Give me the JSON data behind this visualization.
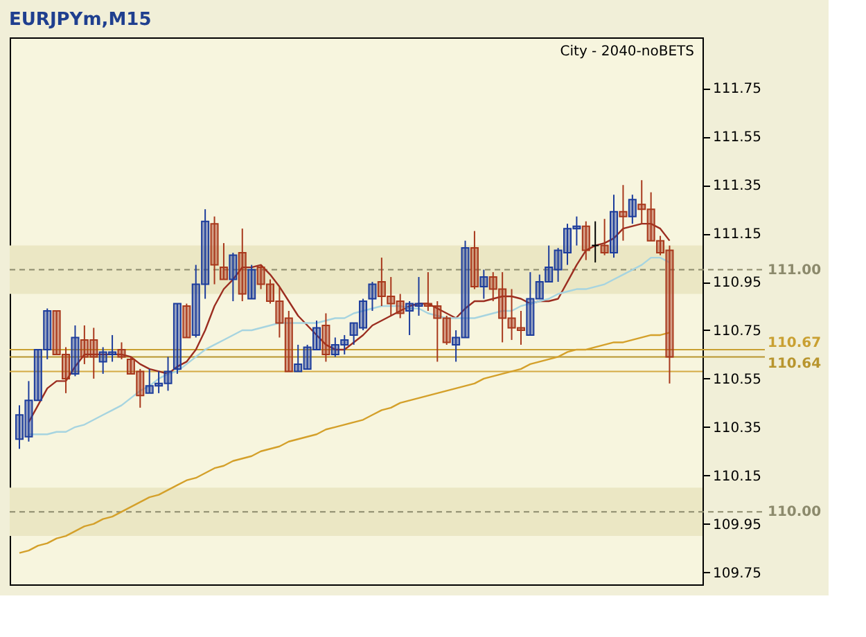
{
  "chart_data": {
    "type": "candlestick",
    "title": "EURJPYm,M15",
    "annotations": [
      "City - 2040-noBETS"
    ],
    "categories": [
      null,
      null,
      null,
      null,
      null,
      null,
      null,
      null,
      null,
      null,
      null,
      null,
      null,
      null,
      null,
      null,
      null,
      null,
      null,
      null,
      null,
      null,
      null,
      null,
      null,
      null,
      null,
      null,
      null,
      null,
      null,
      null,
      null,
      null,
      null,
      null,
      null,
      null,
      null,
      null,
      null,
      null,
      null,
      null,
      null,
      null,
      null,
      null,
      null,
      null,
      null,
      null,
      null,
      null,
      null,
      null,
      null,
      null,
      null,
      null,
      null,
      null,
      null,
      null,
      null,
      null,
      null,
      null,
      null,
      null,
      null
    ],
    "ohlc": [
      [
        110.3,
        110.44,
        110.26,
        110.4
      ],
      [
        110.31,
        110.54,
        110.29,
        110.46
      ],
      [
        110.46,
        110.67,
        110.46,
        110.67
      ],
      [
        110.67,
        110.84,
        110.63,
        110.83
      ],
      [
        110.83,
        110.83,
        110.65,
        110.65
      ],
      [
        110.65,
        110.68,
        110.49,
        110.55
      ],
      [
        110.57,
        110.77,
        110.56,
        110.72
      ],
      [
        110.71,
        110.77,
        110.61,
        110.64
      ],
      [
        110.71,
        110.76,
        110.55,
        110.64
      ],
      [
        110.62,
        110.68,
        110.57,
        110.66
      ],
      [
        110.65,
        110.73,
        110.62,
        110.66
      ],
      [
        110.67,
        110.7,
        110.63,
        110.64
      ],
      [
        110.63,
        110.64,
        110.57,
        110.57
      ],
      [
        110.58,
        110.59,
        110.43,
        110.48
      ],
      [
        110.49,
        110.59,
        110.49,
        110.52
      ],
      [
        110.52,
        110.58,
        110.49,
        110.53
      ],
      [
        110.53,
        110.64,
        110.5,
        110.58
      ],
      [
        110.59,
        110.86,
        110.57,
        110.86
      ],
      [
        110.85,
        110.86,
        110.72,
        110.72
      ],
      [
        110.73,
        111.02,
        110.72,
        110.94
      ],
      [
        110.94,
        111.25,
        110.88,
        111.2
      ],
      [
        111.19,
        111.22,
        110.94,
        111.02
      ],
      [
        111.01,
        111.11,
        110.96,
        110.96
      ],
      [
        110.96,
        111.07,
        110.87,
        111.06
      ],
      [
        111.07,
        111.17,
        110.87,
        110.9
      ],
      [
        110.88,
        111.02,
        110.88,
        111.0
      ],
      [
        111.01,
        111.02,
        110.92,
        110.94
      ],
      [
        110.94,
        110.96,
        110.86,
        110.87
      ],
      [
        110.87,
        110.93,
        110.72,
        110.78
      ],
      [
        110.8,
        110.83,
        110.58,
        110.58
      ],
      [
        110.58,
        110.69,
        110.58,
        110.61
      ],
      [
        110.59,
        110.69,
        110.59,
        110.68
      ],
      [
        110.67,
        110.79,
        110.67,
        110.76
      ],
      [
        110.77,
        110.82,
        110.62,
        110.65
      ],
      [
        110.65,
        110.72,
        110.64,
        110.69
      ],
      [
        110.69,
        110.73,
        110.65,
        110.71
      ],
      [
        110.73,
        110.78,
        110.69,
        110.78
      ],
      [
        110.76,
        110.88,
        110.75,
        110.87
      ],
      [
        110.88,
        110.95,
        110.83,
        110.94
      ],
      [
        110.95,
        111.05,
        110.85,
        110.89
      ],
      [
        110.89,
        110.97,
        110.81,
        110.86
      ],
      [
        110.87,
        110.9,
        110.8,
        110.82
      ],
      [
        110.83,
        110.87,
        110.73,
        110.86
      ],
      [
        110.85,
        110.97,
        110.81,
        110.86
      ],
      [
        110.86,
        110.99,
        110.83,
        110.85
      ],
      [
        110.85,
        110.87,
        110.62,
        110.8
      ],
      [
        110.8,
        110.81,
        110.69,
        110.7
      ],
      [
        110.69,
        110.75,
        110.62,
        110.72
      ],
      [
        110.72,
        111.12,
        110.72,
        111.09
      ],
      [
        111.09,
        111.16,
        110.92,
        110.93
      ],
      [
        110.93,
        111.0,
        110.88,
        110.97
      ],
      [
        110.97,
        110.99,
        110.87,
        110.92
      ],
      [
        110.92,
        110.99,
        110.7,
        110.8
      ],
      [
        110.8,
        110.92,
        110.71,
        110.76
      ],
      [
        110.76,
        110.83,
        110.69,
        110.75
      ],
      [
        110.73,
        110.99,
        110.73,
        110.88
      ],
      [
        110.88,
        110.98,
        110.88,
        110.95
      ],
      [
        110.95,
        111.1,
        110.95,
        111.01
      ],
      [
        111.0,
        111.09,
        110.95,
        111.08
      ],
      [
        111.07,
        111.19,
        111.02,
        111.17
      ],
      [
        111.17,
        111.22,
        111.1,
        111.18
      ],
      [
        111.18,
        111.2,
        111.04,
        111.08
      ],
      [
        111.1,
        111.2,
        111.03,
        111.1
      ],
      [
        111.1,
        111.21,
        111.06,
        111.07
      ],
      [
        111.07,
        111.31,
        111.05,
        111.24
      ],
      [
        111.24,
        111.35,
        111.12,
        111.22
      ],
      [
        111.22,
        111.31,
        111.19,
        111.29
      ],
      [
        111.27,
        111.37,
        111.19,
        111.25
      ],
      [
        111.25,
        111.32,
        111.12,
        111.12
      ],
      [
        111.12,
        111.14,
        111.06,
        111.07
      ],
      [
        111.08,
        111.1,
        110.53,
        110.64
      ]
    ],
    "colors": [
      "#1c3c9c",
      "#1c3c9c",
      "#1c3c9c",
      "#1c3c9c",
      "#a8381c",
      "#a8381c",
      "#1c3c9c",
      "#a8381c",
      "#a8381c",
      "#1c3c9c",
      "#1c3c9c",
      "#a8381c",
      "#a8381c",
      "#a8381c",
      "#1c3c9c",
      "#1c3c9c",
      "#1c3c9c",
      "#1c3c9c",
      "#a8381c",
      "#1c3c9c",
      "#1c3c9c",
      "#a8381c",
      "#a8381c",
      "#1c3c9c",
      "#a8381c",
      "#1c3c9c",
      "#a8381c",
      "#a8381c",
      "#a8381c",
      "#a8381c",
      "#1c3c9c",
      "#1c3c9c",
      "#1c3c9c",
      "#a8381c",
      "#1c3c9c",
      "#1c3c9c",
      "#1c3c9c",
      "#1c3c9c",
      "#1c3c9c",
      "#a8381c",
      "#a8381c",
      "#a8381c",
      "#1c3c9c",
      "#1c3c9c",
      "#a8381c",
      "#a8381c",
      "#a8381c",
      "#1c3c9c",
      "#1c3c9c",
      "#a8381c",
      "#1c3c9c",
      "#a8381c",
      "#a8381c",
      "#a8381c",
      "#a8381c",
      "#1c3c9c",
      "#1c3c9c",
      "#1c3c9c",
      "#1c3c9c",
      "#1c3c9c",
      "#1c3c9c",
      "#a8381c",
      "#000000",
      "#a8381c",
      "#1c3c9c",
      "#a8381c",
      "#1c3c9c",
      "#a8381c",
      "#a8381c",
      "#a8381c",
      "#a8381c"
    ],
    "series": [
      {
        "type": "line",
        "color": "#9b2d20",
        "values": [
          null,
          110.37,
          110.44,
          110.51,
          110.54,
          110.54,
          110.6,
          110.65,
          110.65,
          110.65,
          110.65,
          110.65,
          110.64,
          110.61,
          110.59,
          110.58,
          110.57,
          110.6,
          110.62,
          110.67,
          110.75,
          110.85,
          110.92,
          110.96,
          111.01,
          111.01,
          111.02,
          110.98,
          110.93,
          110.87,
          110.81,
          110.77,
          110.73,
          110.69,
          110.67,
          110.67,
          110.7,
          110.73,
          110.77,
          110.79,
          110.81,
          110.83,
          110.85,
          110.86,
          110.86,
          110.84,
          110.82,
          110.8,
          110.84,
          110.87,
          110.87,
          110.88,
          110.89,
          110.89,
          110.88,
          110.86,
          110.87,
          110.87,
          110.88,
          110.95,
          111.02,
          111.08,
          111.1,
          111.11,
          111.13,
          111.17,
          111.18,
          111.19,
          111.19,
          111.17,
          111.12
        ]
      },
      {
        "type": "line",
        "color": "#a6d4e0",
        "values": [
          null,
          110.32,
          110.32,
          110.32,
          110.33,
          110.33,
          110.35,
          110.36,
          110.38,
          110.4,
          110.42,
          110.44,
          110.47,
          110.5,
          110.52,
          110.55,
          110.57,
          110.58,
          110.61,
          110.64,
          110.67,
          110.69,
          110.71,
          110.73,
          110.75,
          110.75,
          110.76,
          110.77,
          110.78,
          110.78,
          110.78,
          110.78,
          110.78,
          110.79,
          110.8,
          110.8,
          110.82,
          110.83,
          110.84,
          110.85,
          110.85,
          110.85,
          110.84,
          110.84,
          110.82,
          110.81,
          110.8,
          110.8,
          110.8,
          110.8,
          110.81,
          110.82,
          110.83,
          110.83,
          110.85,
          110.86,
          110.87,
          110.88,
          110.9,
          110.91,
          110.92,
          110.92,
          110.93,
          110.94,
          110.96,
          110.98,
          111.0,
          111.02,
          111.05,
          111.05,
          111.03
        ]
      },
      {
        "type": "line",
        "color": "#d4a02a",
        "values": [
          109.83,
          109.84,
          109.86,
          109.87,
          109.89,
          109.9,
          109.92,
          109.94,
          109.95,
          109.97,
          109.98,
          110.0,
          110.02,
          110.04,
          110.06,
          110.07,
          110.09,
          110.11,
          110.13,
          110.14,
          110.16,
          110.18,
          110.19,
          110.21,
          110.22,
          110.23,
          110.25,
          110.26,
          110.27,
          110.29,
          110.3,
          110.31,
          110.32,
          110.34,
          110.35,
          110.36,
          110.37,
          110.38,
          110.4,
          110.42,
          110.43,
          110.45,
          110.46,
          110.47,
          110.48,
          110.49,
          110.5,
          110.51,
          110.52,
          110.53,
          110.55,
          110.56,
          110.57,
          110.58,
          110.59,
          110.61,
          110.62,
          110.63,
          110.64,
          110.66,
          110.67,
          110.67,
          110.68,
          110.69,
          110.7,
          110.7,
          110.71,
          110.72,
          110.73,
          110.73,
          110.74
        ]
      }
    ],
    "ylim": [
      109.7,
      111.96
    ],
    "yticks": [
      109.75,
      109.95,
      110.15,
      110.35,
      110.55,
      110.75,
      110.95,
      111.15,
      111.35,
      111.55,
      111.75
    ],
    "ref_lines": [
      {
        "axis": "y",
        "value": 111.0,
        "label": "111.00",
        "color": "#8c8a6c",
        "line_style": "dashed"
      },
      {
        "axis": "y",
        "value": 110.0,
        "label": "110.00",
        "color": "#8c8a6c",
        "line_style": "dashed"
      },
      {
        "axis": "y",
        "value": 110.67,
        "label": "110.67",
        "color": "#c9a032",
        "line_style": "solid"
      },
      {
        "axis": "y",
        "value": 110.64,
        "label": "110.64",
        "color": "#b8952e",
        "line_style": "solid"
      },
      {
        "axis": "y",
        "value": 110.58,
        "label": null,
        "color": "#d4aa44",
        "line_style": "solid"
      }
    ],
    "bands": [
      {
        "axis": "y",
        "from": 110.9,
        "to": 111.1,
        "label": null,
        "color": "#ebe7c4"
      },
      {
        "axis": "y",
        "from": 109.9,
        "to": 110.1,
        "label": null,
        "color": "#ebe7c4"
      }
    ],
    "grid": false,
    "tick_labels": "y",
    "line_style": "solid",
    "marker": "none"
  }
}
